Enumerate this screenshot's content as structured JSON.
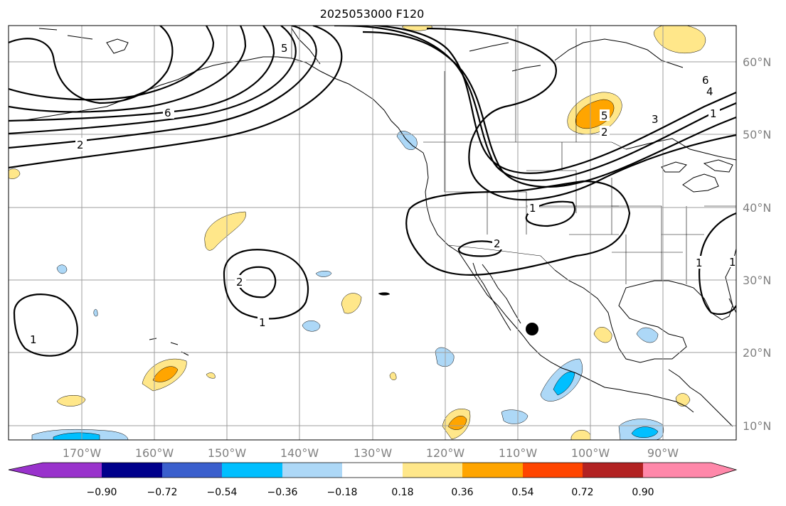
{
  "title": "2025053000 F120",
  "lat_labels": [
    "60°N",
    "50°N",
    "40°N",
    "30°N",
    "20°N",
    "10°N"
  ],
  "lon_labels": [
    "170°W",
    "160°W",
    "150°W",
    "140°W",
    "130°W",
    "120°W",
    "110°W",
    "100°W",
    "90°W"
  ],
  "colorbar": {
    "ticks": [
      "−0.90",
      "−0.72",
      "−0.54",
      "−0.36",
      "−0.18",
      "0.18",
      "0.36",
      "0.54",
      "0.72",
      "0.90"
    ],
    "colors": [
      "#9932cc",
      "#00008b",
      "#3a5fcd",
      "#00bfff",
      "#add8f7",
      "#ffffff",
      "#ffe78a",
      "#ffa500",
      "#ff4500",
      "#b22222",
      "#ff88aa"
    ]
  },
  "contour_labels": [
    "1",
    "2",
    "6",
    "5",
    "1",
    "2",
    "1",
    "2",
    "1",
    "6",
    "4",
    "3",
    "1",
    "5",
    "2",
    "1"
  ],
  "map_extent": {
    "lon_min": -180,
    "lon_max": -80,
    "lat_min": 8,
    "lat_max": 65
  }
}
